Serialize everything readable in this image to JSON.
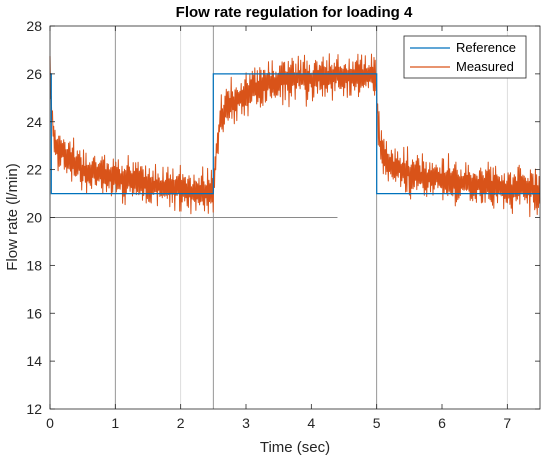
{
  "chart_data": {
    "type": "line",
    "title": "Flow rate regulation for loading 4",
    "xlabel": "Time (sec)",
    "ylabel": "Flow rate (l/min)",
    "xlim": [
      0,
      7.5
    ],
    "ylim": [
      12,
      28
    ],
    "xticks": [
      0,
      1,
      2,
      3,
      4,
      5,
      6,
      7
    ],
    "yticks": [
      12,
      14,
      16,
      18,
      20,
      22,
      24,
      26,
      28
    ],
    "x_tick_labels": [
      "0",
      "1",
      "2",
      "3",
      "4",
      "5",
      "6",
      "7"
    ],
    "y_tick_labels": [
      "12",
      "14",
      "16",
      "18",
      "20",
      "22",
      "24",
      "26",
      "28"
    ],
    "grid_x": [
      1,
      2,
      2.5,
      5,
      7
    ],
    "guide_line": {
      "x": [
        0,
        4.4
      ],
      "y": 20
    },
    "legend": {
      "location": "top-right",
      "entries": [
        "Reference",
        "Measured"
      ]
    },
    "series": [
      {
        "name": "Reference",
        "color": "#0072bd",
        "x": [
          0,
          0.02,
          0.02,
          2.5,
          2.5,
          5.0,
          5.0,
          7.5
        ],
        "y": [
          26,
          26,
          21,
          21,
          26,
          26,
          21,
          21
        ]
      },
      {
        "name": "Measured",
        "color": "#d95319",
        "x": [
          0,
          0.02,
          0.05,
          0.1,
          0.2,
          0.3,
          0.4,
          0.5,
          0.75,
          1.0,
          1.25,
          1.5,
          1.75,
          2.0,
          2.25,
          2.45,
          2.5,
          2.55,
          2.6,
          2.7,
          2.8,
          3.0,
          3.25,
          3.5,
          3.75,
          4.0,
          4.25,
          4.5,
          4.75,
          4.98,
          5.0,
          5.05,
          5.1,
          5.2,
          5.4,
          5.6,
          5.8,
          6.0,
          6.25,
          6.5,
          6.75,
          7.0,
          7.25,
          7.5
        ],
        "y": [
          26.2,
          24.5,
          23.6,
          23.0,
          22.7,
          22.5,
          22.2,
          22.0,
          21.8,
          21.7,
          21.5,
          21.4,
          21.3,
          21.2,
          21.1,
          21.0,
          21.3,
          23.0,
          24.0,
          24.5,
          24.8,
          25.2,
          25.5,
          25.7,
          25.8,
          25.8,
          25.9,
          25.9,
          26.0,
          26.0,
          25.0,
          23.0,
          22.5,
          22.2,
          22.0,
          21.8,
          21.7,
          21.6,
          21.5,
          21.4,
          21.3,
          21.2,
          21.2,
          21.1
        ],
        "noise_amplitude": 0.85
      }
    ]
  }
}
